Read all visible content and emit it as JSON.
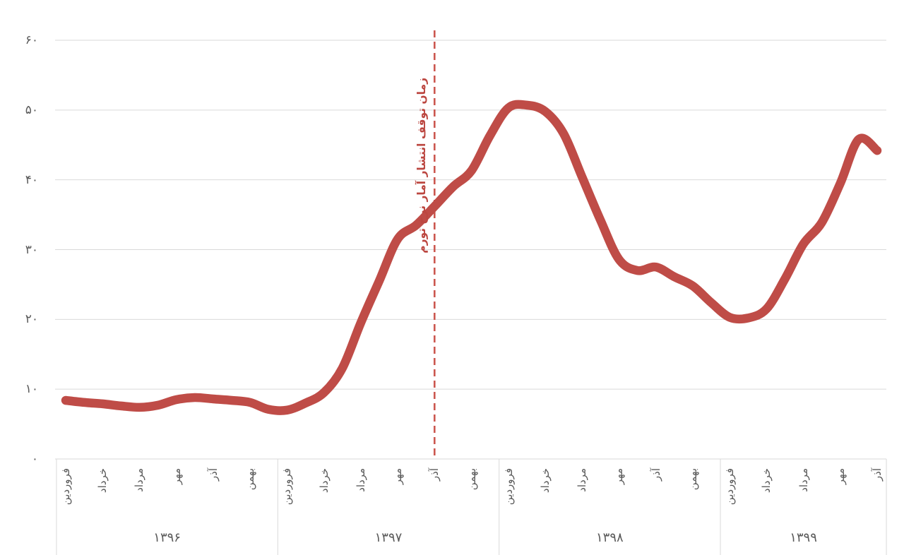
{
  "chart_data": {
    "type": "line",
    "ylim": [
      0,
      60
    ],
    "grid": true,
    "y_tick_values": [
      0,
      10,
      20,
      30,
      40,
      50,
      60
    ],
    "y_tick_labels": [
      "۰",
      "۱۰",
      "۲۰",
      "۳۰",
      "۴۰",
      "۵۰",
      "۶۰"
    ],
    "years": [
      {
        "label": "۱۳۹۶",
        "tick_labels": [
          "فروردین",
          "خرداد",
          "مرداد",
          "مهر",
          "آذر",
          "بهمن"
        ],
        "values": [
          8.4,
          8.1,
          7.9,
          7.6,
          7.4,
          7.7,
          8.5,
          8.8,
          8.6,
          8.4,
          8.1,
          7.1
        ]
      },
      {
        "label": "۱۳۹۷",
        "tick_labels": [
          "فروردین",
          "خرداد",
          "مرداد",
          "مهر",
          "آذر",
          "بهمن"
        ],
        "values": [
          7.0,
          8.0,
          9.5,
          13.0,
          19.5,
          25.5,
          31.5,
          33.5,
          36.2,
          39.0,
          41.3,
          46.3
        ]
      },
      {
        "label": "۱۳۹۸",
        "tick_labels": [
          "فروردین",
          "خرداد",
          "مرداد",
          "مهر",
          "آذر",
          "بهمن"
        ],
        "values": [
          50.3,
          50.7,
          49.8,
          46.6,
          40.4,
          34.2,
          28.6,
          27.0,
          27.5,
          26.1,
          24.8,
          22.4
        ]
      },
      {
        "label": "۱۳۹۹",
        "tick_labels": [
          "فروردین",
          "خرداد",
          "مرداد",
          "مهر",
          "آذر"
        ],
        "values": [
          20.3,
          20.2,
          21.5,
          25.8,
          30.8,
          33.9,
          39.5,
          45.8,
          44.2
        ]
      }
    ],
    "annotation": {
      "text": "زمان توقف انتشار آمار نرخ تورم",
      "at_global_month_index": 20,
      "at_month_label": "آذر ۱۳۹۷"
    },
    "colors": {
      "line": "#bf4c47",
      "dashed_line": "#cb574f",
      "annotation_text": "#bc4741",
      "axis_text": "#5a5a5a",
      "grid": "#d9d9d9"
    }
  }
}
